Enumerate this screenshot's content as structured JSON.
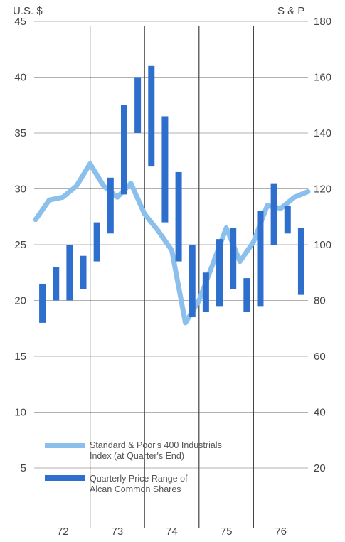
{
  "chart_data": {
    "type": "line+range-bar",
    "left_axis": {
      "title": "U.S. $",
      "ticks": [
        5,
        10,
        15,
        20,
        25,
        30,
        35,
        40,
        45
      ],
      "range": [
        5,
        45
      ]
    },
    "right_axis": {
      "title": "S & P",
      "ticks": [
        20,
        40,
        60,
        80,
        100,
        120,
        140,
        160,
        180
      ],
      "range": [
        20,
        180
      ]
    },
    "x_labels": [
      "72",
      "73",
      "74",
      "75",
      "76"
    ],
    "x_range": [
      1972,
      1977
    ],
    "grid": "vertical lines at year boundaries, partial horizontal gridlines",
    "colors": {
      "index_line": "#8cc0ec",
      "price_bars": "#2e6fcd",
      "grid": "#444444"
    },
    "legend": {
      "placement": "bottom-left",
      "items": [
        {
          "line1": "Standard & Poor's 400 Industrials",
          "line2": "Index (at Quarter's End)",
          "color": "#8cc0ec",
          "style": "line"
        },
        {
          "line1": "Quarterly Price Range of",
          "line2": "Alcan Common Shares",
          "color": "#2e6fcd",
          "style": "bar"
        }
      ]
    },
    "series": [
      {
        "name": "Standard & Poor's 400 Industrials Index (at Quarter's End)",
        "axis": "right",
        "x": [
          1972.0,
          1972.25,
          1972.5,
          1972.75,
          1973.0,
          1973.25,
          1973.5,
          1973.75,
          1974.0,
          1974.25,
          1974.5,
          1974.75,
          1975.0,
          1975.25,
          1975.5,
          1975.75,
          1976.0,
          1976.25,
          1976.5,
          1976.75,
          1977.0
        ],
        "values": [
          109,
          116,
          117,
          121,
          129,
          121,
          117,
          122,
          111,
          105,
          98,
          72,
          80,
          93,
          106,
          94,
          101,
          114,
          113,
          117,
          119
        ]
      },
      {
        "name": "Quarterly Price Range of Alcan Common Shares",
        "axis": "left",
        "x": [
          1972.125,
          1972.375,
          1972.625,
          1972.875,
          1973.125,
          1973.375,
          1973.625,
          1973.875,
          1974.125,
          1974.375,
          1974.625,
          1974.875,
          1975.125,
          1975.375,
          1975.625,
          1975.875,
          1976.125,
          1976.375,
          1976.625,
          1976.875
        ],
        "low": [
          18,
          20,
          20,
          21,
          23.5,
          26,
          29.5,
          35,
          32,
          27,
          23.5,
          18.5,
          19,
          19.5,
          21,
          19,
          19.5,
          25,
          26,
          20.5
        ],
        "high": [
          21.5,
          23,
          25,
          24,
          27,
          31,
          37.5,
          40,
          41,
          36.5,
          31.5,
          25,
          22.5,
          25.5,
          26.5,
          22,
          28,
          30.5,
          28.5,
          26.5
        ]
      }
    ]
  }
}
